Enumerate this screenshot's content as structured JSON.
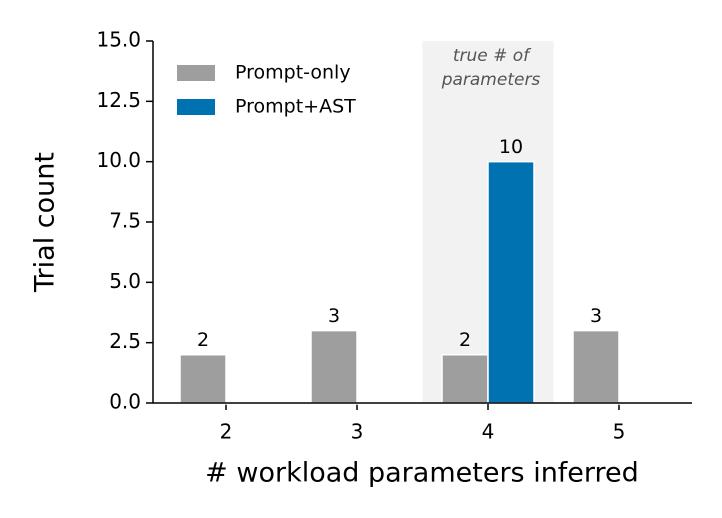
{
  "chart_data": {
    "type": "bar",
    "x_label": "# workload parameters inferred",
    "y_label": "Trial count",
    "categories": [
      "2",
      "3",
      "4",
      "5"
    ],
    "series": [
      {
        "name": "Prompt-only",
        "color": "#9e9e9e",
        "values": [
          2,
          3,
          2,
          3
        ]
      },
      {
        "name": "Prompt+AST",
        "color": "#0072b2",
        "values": [
          0,
          0,
          10,
          0
        ]
      }
    ],
    "ylim": [
      0,
      15
    ],
    "yticks": [
      {
        "value": 0,
        "label": "0.0"
      },
      2.5,
      {
        "value": 5,
        "label": "5.0"
      },
      7.5,
      {
        "value": 10,
        "label": "10.0"
      },
      12.5,
      {
        "value": 15,
        "label": "15.0"
      }
    ],
    "legend": "upper left",
    "annotation": {
      "category": "4",
      "lines": [
        "true # of",
        "parameters"
      ],
      "color": "#f2f2f2"
    }
  }
}
